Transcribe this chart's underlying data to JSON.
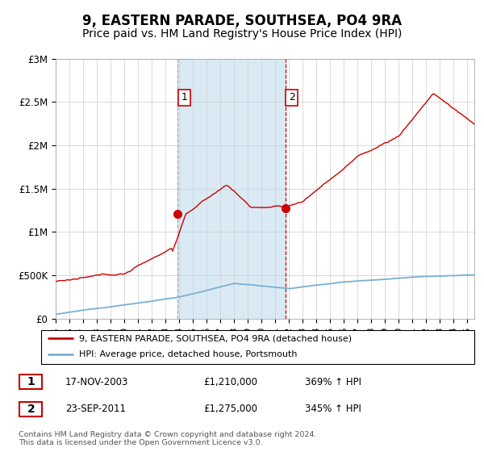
{
  "title": "9, EASTERN PARADE, SOUTHSEA, PO4 9RA",
  "subtitle": "Price paid vs. HM Land Registry's House Price Index (HPI)",
  "title_fontsize": 12,
  "subtitle_fontsize": 10,
  "ylabel_ticks": [
    "£0",
    "£500K",
    "£1M",
    "£1.5M",
    "£2M",
    "£2.5M",
    "£3M"
  ],
  "ylabel_values": [
    0,
    500000,
    1000000,
    1500000,
    2000000,
    2500000,
    3000000
  ],
  "ylim": [
    0,
    3000000
  ],
  "xlim_start": 1995.0,
  "xlim_end": 2025.5,
  "shade_start_1": 2003.88,
  "shade_end_1": 2011.72,
  "marker1_x": 2003.88,
  "marker1_y": 1210000,
  "marker2_x": 2011.72,
  "marker2_y": 1275000,
  "hpi_line_color": "#7ab0d4",
  "price_line_color": "#cc0000",
  "shade_color": "#daeaf5",
  "grid_color": "#cccccc",
  "legend_line1": "9, EASTERN PARADE, SOUTHSEA, PO4 9RA (detached house)",
  "legend_line2": "HPI: Average price, detached house, Portsmouth",
  "table_row1_num": "1",
  "table_row1_date": "17-NOV-2003",
  "table_row1_price": "£1,210,000",
  "table_row1_hpi": "369% ↑ HPI",
  "table_row2_num": "2",
  "table_row2_date": "23-SEP-2011",
  "table_row2_price": "£1,275,000",
  "table_row2_hpi": "345% ↑ HPI",
  "footnote": "Contains HM Land Registry data © Crown copyright and database right 2024.\nThis data is licensed under the Open Government Licence v3.0."
}
